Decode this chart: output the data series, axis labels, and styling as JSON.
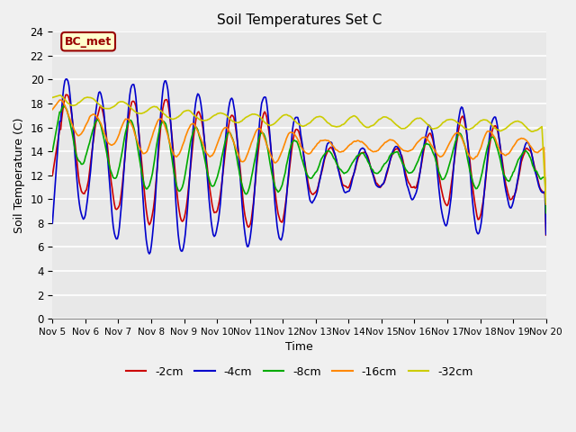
{
  "title": "Soil Temperatures Set C",
  "xlabel": "Time",
  "ylabel": "Soil Temperature (C)",
  "ylim": [
    0,
    24
  ],
  "yticks": [
    0,
    2,
    4,
    6,
    8,
    10,
    12,
    14,
    16,
    18,
    20,
    22,
    24
  ],
  "xtick_labels": [
    "Nov 5",
    "Nov 6",
    "Nov 7",
    "Nov 8",
    "Nov 9",
    "Nov 10",
    "Nov 11",
    "Nov 12",
    "Nov 13",
    "Nov 14",
    "Nov 15",
    "Nov 16",
    "Nov 17",
    "Nov 18",
    "Nov 19",
    "Nov 20"
  ],
  "legend_labels": [
    "-2cm",
    "-4cm",
    "-8cm",
    "-16cm",
    "-32cm"
  ],
  "colors": [
    "#cc0000",
    "#0000cc",
    "#00aa00",
    "#ff8800",
    "#cccc00"
  ],
  "annotation_text": "BC_met",
  "annotation_color": "#990000",
  "annotation_bg": "#ffffcc",
  "plot_bg_color": "#e8e8e8",
  "fig_bg_color": "#f0f0f0",
  "linewidth": 1.2,
  "grid_color": "white",
  "n_points": 480
}
